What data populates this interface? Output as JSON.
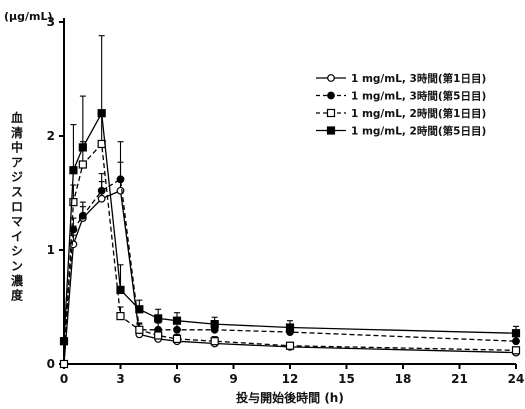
{
  "chart_data": {
    "type": "line",
    "title": "",
    "unit_label": "(μg/mL)",
    "xlabel": "投与開始後時間 (h)",
    "ylabel": "血清中アジスロマイシン濃度",
    "xlim": [
      0,
      24
    ],
    "ylim": [
      0,
      3
    ],
    "xticks": [
      0,
      3,
      6,
      9,
      12,
      15,
      18,
      21,
      24
    ],
    "yticks": [
      0,
      1,
      2,
      3
    ],
    "grid": false,
    "legend_position": "top-right",
    "series": [
      {
        "name": "1 mg/mL, 3時間(第1日目)",
        "line": "solid",
        "marker": "circle",
        "fill": "open",
        "x": [
          0,
          0.5,
          1,
          2,
          3,
          4,
          5,
          6,
          8,
          12,
          24
        ],
        "y": [
          0.0,
          1.05,
          1.28,
          1.45,
          1.52,
          0.26,
          0.22,
          0.2,
          0.18,
          0.15,
          0.1
        ],
        "err": [
          0,
          0.08,
          0.1,
          0.15,
          0.25,
          0.05,
          0.03,
          0.03,
          0.03,
          0.03,
          0.02
        ]
      },
      {
        "name": "1 mg/mL, 3時間(第5日目)",
        "line": "dashed",
        "marker": "circle",
        "fill": "filled",
        "x": [
          0,
          0.5,
          1,
          2,
          3,
          4,
          5,
          6,
          8,
          12,
          24
        ],
        "y": [
          0.2,
          1.18,
          1.3,
          1.52,
          1.62,
          0.3,
          0.3,
          0.3,
          0.3,
          0.28,
          0.2
        ],
        "err": [
          0.03,
          0.1,
          0.12,
          0.15,
          0.33,
          0.06,
          0.06,
          0.06,
          0.06,
          0.06,
          0.05
        ]
      },
      {
        "name": "1 mg/mL, 2時間(第1日目)",
        "line": "dashed",
        "marker": "square",
        "fill": "open",
        "x": [
          0,
          0.5,
          1,
          2,
          3,
          4,
          5,
          6,
          8,
          12,
          24
        ],
        "y": [
          0.0,
          1.42,
          1.75,
          1.93,
          0.42,
          0.3,
          0.25,
          0.22,
          0.2,
          0.16,
          0.12
        ],
        "err": [
          0,
          0.15,
          0.2,
          0.25,
          0.08,
          0.05,
          0.04,
          0.04,
          0.04,
          0.03,
          0.03
        ]
      },
      {
        "name": "1 mg/mL, 2時間(第5日目)",
        "line": "solid",
        "marker": "square",
        "fill": "filled",
        "x": [
          0,
          0.5,
          1,
          2,
          3,
          4,
          5,
          6,
          8,
          12,
          24
        ],
        "y": [
          0.2,
          1.7,
          1.9,
          2.2,
          0.65,
          0.48,
          0.4,
          0.38,
          0.35,
          0.32,
          0.27
        ],
        "err": [
          0.03,
          0.4,
          0.45,
          0.68,
          0.22,
          0.08,
          0.08,
          0.07,
          0.06,
          0.06,
          0.06
        ]
      }
    ]
  }
}
